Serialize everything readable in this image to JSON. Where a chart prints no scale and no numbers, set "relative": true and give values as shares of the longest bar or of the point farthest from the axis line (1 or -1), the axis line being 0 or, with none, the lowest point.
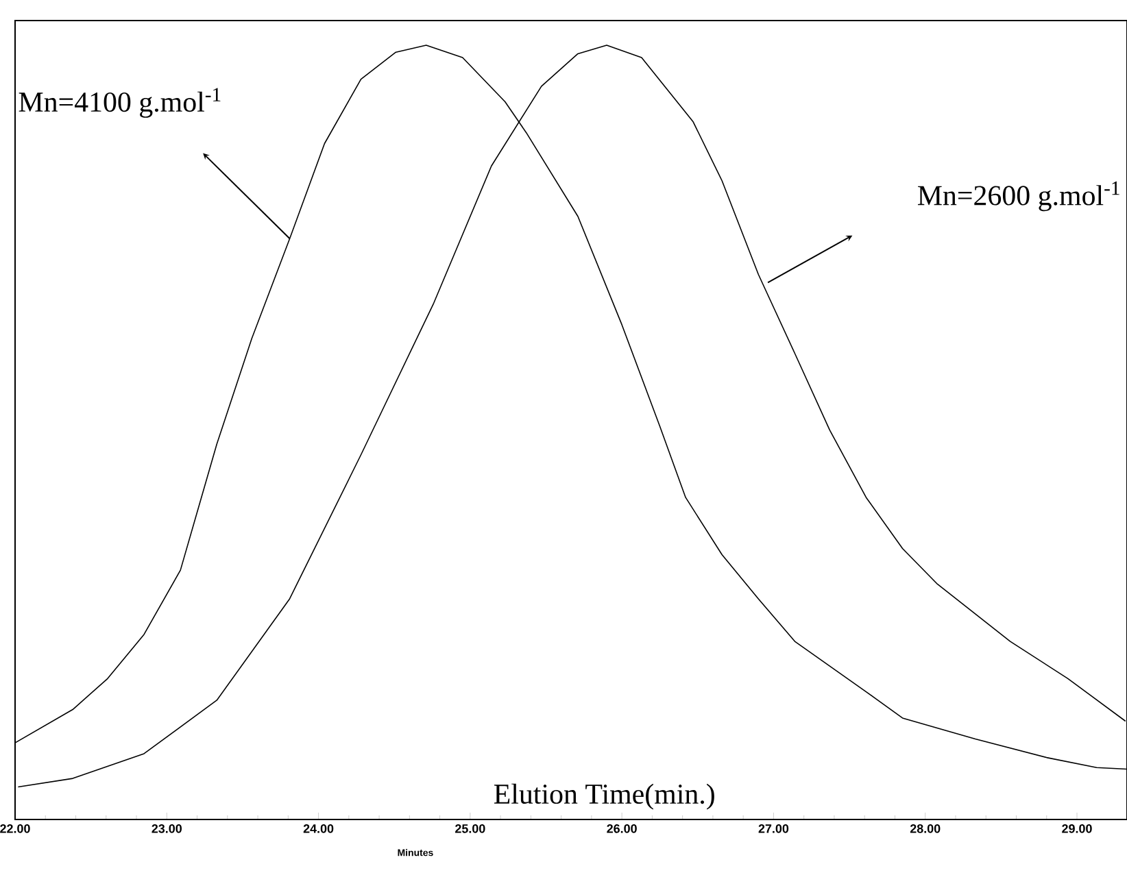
{
  "chart_data": {
    "type": "line",
    "relative": true,
    "xlabel": "Minutes",
    "xlim": [
      22,
      29.33
    ],
    "xticks": [
      {
        "value": 22,
        "label": "22.00"
      },
      {
        "value": 23,
        "label": "23.00"
      },
      {
        "value": 24,
        "label": "24.00"
      },
      {
        "value": 25,
        "label": "25.00"
      },
      {
        "value": 26,
        "label": "26.00"
      },
      {
        "value": 27,
        "label": "27.00"
      },
      {
        "value": 28,
        "label": "28.00"
      },
      {
        "value": 29,
        "label": "29.00"
      }
    ],
    "grid": false,
    "marker": "none",
    "line_style": "solid",
    "series": [
      {
        "color": "#000000",
        "x": [
          22.0,
          22.38,
          22.61,
          22.85,
          23.09,
          23.33,
          23.56,
          23.81,
          24.04,
          24.28,
          24.51,
          24.71,
          24.95,
          25.23,
          25.37,
          25.71,
          26.0,
          26.25,
          26.42,
          26.66,
          26.9,
          27.14,
          27.61,
          27.85,
          28.33,
          28.8,
          29.13,
          29.33
        ],
        "values": [
          0.099,
          0.142,
          0.182,
          0.239,
          0.322,
          0.485,
          0.621,
          0.75,
          0.873,
          0.956,
          0.991,
          1.0,
          0.984,
          0.927,
          0.887,
          0.779,
          0.639,
          0.508,
          0.416,
          0.342,
          0.285,
          0.23,
          0.165,
          0.131,
          0.104,
          0.08,
          0.067,
          0.065
        ]
      },
      {
        "color": "#000000",
        "x": [
          22.02,
          22.38,
          22.85,
          23.33,
          23.81,
          24.28,
          24.76,
          25.14,
          25.47,
          25.71,
          25.9,
          26.13,
          26.47,
          26.66,
          26.9,
          27.14,
          27.37,
          27.61,
          27.85,
          28.08,
          28.56,
          28.94,
          29.32
        ],
        "values": [
          0.042,
          0.053,
          0.085,
          0.154,
          0.285,
          0.471,
          0.667,
          0.844,
          0.947,
          0.989,
          1.0,
          0.984,
          0.901,
          0.825,
          0.704,
          0.602,
          0.503,
          0.416,
          0.35,
          0.304,
          0.23,
          0.182,
          0.127
        ]
      }
    ],
    "annotations": [
      "Mn=4100 g.mol$^{-1}$",
      "Mn=2600 g.mol$^{-1}$",
      "Elution Time(min.)"
    ]
  }
}
